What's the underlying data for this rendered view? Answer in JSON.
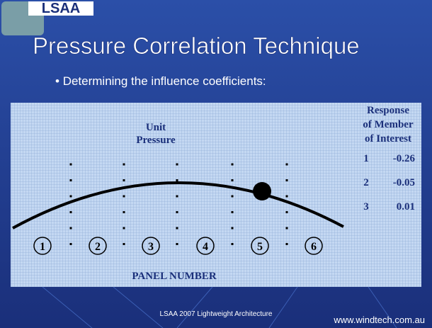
{
  "logo": "LSAA",
  "title": "Pressure Correlation Technique",
  "bullet": "Determining the influence coefficients:",
  "diagram": {
    "load_label": [
      "Unit",
      "Pressure"
    ],
    "response_header": [
      "Response",
      "of Member",
      "of Interest"
    ],
    "response_rows": [
      [
        "1",
        "-0.26"
      ],
      [
        "2",
        "-0.05"
      ],
      [
        "3",
        "0.01"
      ]
    ],
    "panels": [
      "1",
      "2",
      "3",
      "4",
      "5",
      "6"
    ],
    "axis_label": "PANEL NUMBER"
  },
  "footer": {
    "center": "LSAA 2007 Lightweight Architecture",
    "right": "www.windtech.com.au"
  }
}
